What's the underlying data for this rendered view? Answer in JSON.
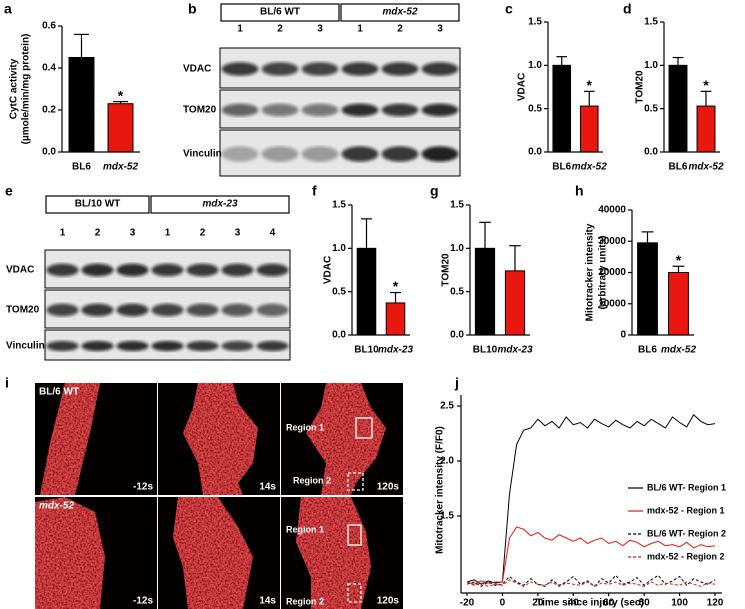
{
  "chart_data": [
    {
      "type": "bar",
      "panel": "a",
      "ylabel": [
        "CytC activity",
        "(µmole/min/mg protein)"
      ],
      "categories": [
        "BL6",
        "mdx-52"
      ],
      "values": [
        0.45,
        0.23
      ],
      "errors": [
        0.11,
        0.01
      ],
      "colors": [
        "#000000",
        "#e8170f"
      ],
      "significance": [
        null,
        "*"
      ],
      "ylim": [
        0,
        0.6
      ],
      "yticks": [
        {
          "value": 0,
          "label": "0.0"
        },
        0.2,
        0.4,
        0.6
      ]
    },
    {
      "type": "bar",
      "panel": "c",
      "ylabel": [
        "VDAC"
      ],
      "categories": [
        "BL6",
        "mdx-52"
      ],
      "values": [
        1.0,
        0.53
      ],
      "errors": [
        0.1,
        0.17
      ],
      "colors": [
        "#000000",
        "#e8170f"
      ],
      "significance": [
        null,
        "*"
      ],
      "ylim": [
        0,
        1.5
      ],
      "yticks": [
        {
          "value": 0,
          "label": "0.0"
        },
        0.5,
        {
          "value": 1,
          "label": "1.0"
        },
        1.5
      ]
    },
    {
      "type": "bar",
      "panel": "d",
      "ylabel": [
        "TOM20"
      ],
      "categories": [
        "BL6",
        "mdx-52"
      ],
      "values": [
        1.0,
        0.53
      ],
      "errors": [
        0.09,
        0.17
      ],
      "colors": [
        "#000000",
        "#e8170f"
      ],
      "significance": [
        null,
        "*"
      ],
      "ylim": [
        0,
        1.5
      ],
      "yticks": [
        {
          "value": 0,
          "label": "0.0"
        },
        0.5,
        {
          "value": 1,
          "label": "1.0"
        },
        1.5
      ]
    },
    {
      "type": "bar",
      "panel": "f",
      "ylabel": [
        "VDAC"
      ],
      "categories": [
        "BL10",
        "mdx-23"
      ],
      "values": [
        1.0,
        0.37
      ],
      "errors": [
        0.34,
        0.12
      ],
      "colors": [
        "#000000",
        "#e8170f"
      ],
      "significance": [
        null,
        "*"
      ],
      "ylim": [
        0,
        1.5
      ],
      "yticks": [
        {
          "value": 0,
          "label": "0.0"
        },
        0.5,
        {
          "value": 1,
          "label": "1.0"
        },
        1.5
      ]
    },
    {
      "type": "bar",
      "panel": "g",
      "ylabel": [
        "TOM20"
      ],
      "categories": [
        "BL10",
        "mdx-23"
      ],
      "values": [
        1.0,
        0.74
      ],
      "errors": [
        0.3,
        0.29
      ],
      "colors": [
        "#000000",
        "#e8170f"
      ],
      "significance": [
        null,
        null
      ],
      "ylim": [
        0,
        1.5
      ],
      "yticks": [
        {
          "value": 0,
          "label": "0.0"
        },
        0.5,
        {
          "value": 1,
          "label": "1.0"
        },
        1.5
      ]
    },
    {
      "type": "bar",
      "panel": "h",
      "ylabel": [
        "Mitotracker intensity",
        "(arbitrary units)"
      ],
      "categories": [
        "BL6",
        "mdx-52"
      ],
      "values": [
        29500,
        20000
      ],
      "errors": [
        3500,
        2000
      ],
      "colors": [
        "#000000",
        "#e8170f"
      ],
      "significance": [
        null,
        "*"
      ],
      "ylim": [
        0,
        40000
      ],
      "yticks": [
        0,
        10000,
        20000,
        30000,
        40000
      ]
    },
    {
      "type": "line",
      "panel": "j",
      "xlabel": "Time since injury (sec)",
      "ylabel": "Mitotracker intensity (F/F0)",
      "x": [
        -20,
        -16,
        -12,
        -8,
        -4,
        0,
        4,
        8,
        12,
        16,
        20,
        24,
        28,
        32,
        36,
        40,
        44,
        48,
        52,
        56,
        60,
        64,
        68,
        72,
        76,
        80,
        84,
        88,
        92,
        96,
        100,
        104,
        108,
        112,
        116,
        120
      ],
      "xlim": [
        -20,
        120
      ],
      "xticks": [
        -20,
        0,
        20,
        40,
        60,
        80,
        100,
        120
      ],
      "ylim": [
        0.8,
        2.6
      ],
      "yticks": [
        1.5,
        {
          "value": 2,
          "label": "2.0"
        },
        2.5
      ],
      "legend": "right",
      "series": [
        {
          "name": "BL/6 WT- Region 1",
          "color": "#000000",
          "dash": false,
          "values": [
            0.9,
            0.92,
            0.88,
            0.91,
            0.89,
            0.9,
            1.7,
            2.15,
            2.28,
            2.3,
            2.38,
            2.32,
            2.36,
            2.3,
            2.4,
            2.33,
            2.35,
            2.3,
            2.38,
            2.34,
            2.31,
            2.37,
            2.33,
            2.3,
            2.36,
            2.32,
            2.38,
            2.34,
            2.3,
            2.4,
            2.35,
            2.31,
            2.42,
            2.36,
            2.33,
            2.34
          ]
        },
        {
          "name": "mdx-52 - Region 1",
          "color": "#e8170f",
          "dash": false,
          "values": [
            0.9,
            0.88,
            0.91,
            0.89,
            0.9,
            0.9,
            1.3,
            1.4,
            1.38,
            1.32,
            1.35,
            1.3,
            1.28,
            1.33,
            1.3,
            1.27,
            1.3,
            1.25,
            1.28,
            1.3,
            1.25,
            1.27,
            1.23,
            1.28,
            1.26,
            1.22,
            1.25,
            1.27,
            1.23,
            1.24,
            1.22,
            1.26,
            1.21,
            1.24,
            1.22,
            1.23
          ]
        },
        {
          "name": "BL/6 WT- Region 2",
          "color": "#000000",
          "dash": true,
          "values": [
            0.88,
            0.9,
            0.86,
            0.9,
            0.87,
            0.88,
            0.95,
            0.9,
            0.87,
            0.93,
            0.88,
            0.86,
            0.92,
            0.87,
            0.9,
            0.95,
            0.88,
            0.91,
            0.86,
            0.93,
            0.89,
            0.96,
            0.88,
            0.9,
            0.94,
            0.87,
            0.92,
            0.96,
            0.88,
            0.91,
            0.95,
            0.87,
            0.93,
            0.9,
            0.88,
            0.92
          ]
        },
        {
          "name": "mdx-52 - Region 2",
          "color": "#e8170f",
          "dash": true,
          "values": [
            0.9,
            0.87,
            0.89,
            0.86,
            0.88,
            0.87,
            0.92,
            0.89,
            0.86,
            0.9,
            0.88,
            0.87,
            0.9,
            0.86,
            0.89,
            0.88,
            0.87,
            0.9,
            0.86,
            0.89,
            0.88,
            0.9,
            0.87,
            0.89,
            0.88,
            0.86,
            0.9,
            0.87,
            0.89,
            0.88,
            0.87,
            0.9,
            0.88,
            0.86,
            0.89,
            0.88
          ]
        }
      ]
    }
  ],
  "blots": [
    {
      "panel": "b",
      "groups": [
        {
          "label": "BL/6 WT",
          "lanes": [
            "1",
            "2",
            "3"
          ]
        },
        {
          "label": "mdx-52",
          "lanes": [
            "1",
            "2",
            "3"
          ]
        }
      ],
      "rows": [
        "VDAC",
        "TOM20",
        "Vinculin"
      ]
    },
    {
      "panel": "e",
      "groups": [
        {
          "label": "BL/10 WT",
          "lanes": [
            "1",
            "2",
            "3"
          ]
        },
        {
          "label": "mdx-23",
          "lanes": [
            "1",
            "2",
            "3",
            "4"
          ]
        }
      ],
      "rows": [
        "VDAC",
        "TOM20",
        "Vinculin"
      ]
    }
  ],
  "micrographs": {
    "panel": "i",
    "rows": [
      "BL/6 WT",
      "mdx-52"
    ],
    "times": [
      "-12s",
      "14s",
      "120s"
    ],
    "regions": [
      "Region 1",
      "Region 2"
    ]
  }
}
